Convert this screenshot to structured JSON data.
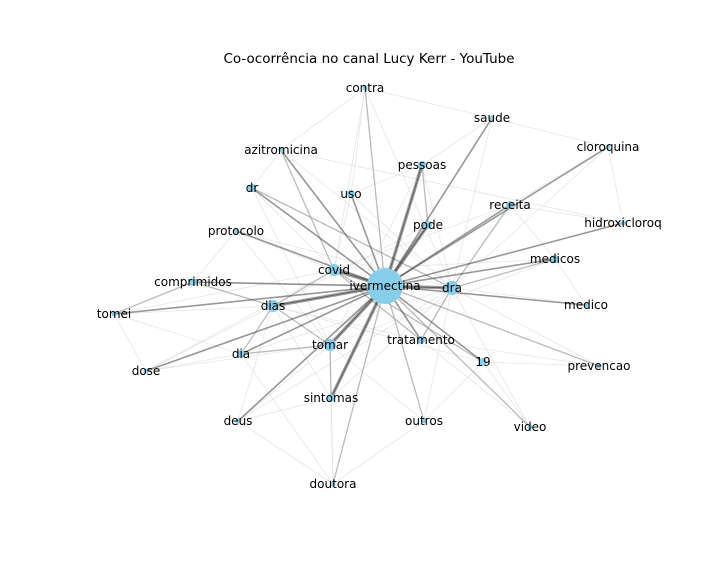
{
  "title": "Co-ocorrência no canal Lucy Kerr - YouTube",
  "colors": {
    "node_fill": "#87ceeb",
    "strong_edge": "#444444",
    "medium_edge": "#9e9e9e",
    "weak_edge": "#dddddd",
    "background": "#ffffff"
  },
  "nodes": [
    {
      "id": "ivermectina",
      "label": "ivermectina",
      "size": "hub"
    },
    {
      "id": "dra",
      "label": "dra",
      "size": "large"
    },
    {
      "id": "covid",
      "label": "covid",
      "size": "medium"
    },
    {
      "id": "dias",
      "label": "dias",
      "size": "medium"
    },
    {
      "id": "tomar",
      "label": "tomar",
      "size": "medium"
    },
    {
      "id": "pode",
      "label": "pode",
      "size": "small"
    },
    {
      "id": "uso",
      "label": "uso",
      "size": "small"
    },
    {
      "id": "pessoas",
      "label": "pessoas",
      "size": "small"
    },
    {
      "id": "receita",
      "label": "receita",
      "size": "small"
    },
    {
      "id": "tratamento",
      "label": "tratamento",
      "size": "small"
    },
    {
      "id": "19",
      "label": "19",
      "size": "small"
    },
    {
      "id": "dia",
      "label": "dia",
      "size": "small"
    },
    {
      "id": "sintomas",
      "label": "sintomas",
      "size": "small"
    },
    {
      "id": "medicos",
      "label": "medicos",
      "size": "small"
    },
    {
      "id": "dr",
      "label": "dr",
      "size": "small"
    },
    {
      "id": "comprimidos",
      "label": "comprimidos",
      "size": "small"
    },
    {
      "id": "azitromicina",
      "label": "azitromicina",
      "size": "tiny"
    },
    {
      "id": "protocolo",
      "label": "protocolo",
      "size": "tiny"
    },
    {
      "id": "contra",
      "label": "contra",
      "size": "tiny"
    },
    {
      "id": "saude",
      "label": "saude",
      "size": "tiny"
    },
    {
      "id": "cloroquina",
      "label": "cloroquina",
      "size": "tiny"
    },
    {
      "id": "hidroxicloroq",
      "label": "hidroxicloroq",
      "size": "tiny"
    },
    {
      "id": "medico",
      "label": "medico",
      "size": "tiny"
    },
    {
      "id": "prevencao",
      "label": "prevencao",
      "size": "tiny"
    },
    {
      "id": "video",
      "label": "video",
      "size": "tiny"
    },
    {
      "id": "outros",
      "label": "outros",
      "size": "tiny"
    },
    {
      "id": "doutora",
      "label": "doutora",
      "size": "tiny"
    },
    {
      "id": "deus",
      "label": "deus",
      "size": "tiny"
    },
    {
      "id": "dose",
      "label": "dose",
      "size": "tiny"
    },
    {
      "id": "tomei",
      "label": "tomei",
      "size": "tiny"
    }
  ],
  "strong_edges": [
    [
      "ivermectina",
      "dra"
    ],
    [
      "ivermectina",
      "covid"
    ],
    [
      "ivermectina",
      "dias"
    ],
    [
      "ivermectina",
      "tomar"
    ],
    [
      "ivermectina",
      "pode"
    ],
    [
      "ivermectina",
      "uso"
    ],
    [
      "ivermectina",
      "pessoas"
    ],
    [
      "ivermectina",
      "receita"
    ],
    [
      "ivermectina",
      "tratamento"
    ],
    [
      "ivermectina",
      "19"
    ],
    [
      "ivermectina",
      "dia"
    ],
    [
      "ivermectina",
      "sintomas"
    ],
    [
      "ivermectina",
      "medicos"
    ],
    [
      "ivermectina",
      "dr"
    ],
    [
      "ivermectina",
      "comprimidos"
    ],
    [
      "ivermectina",
      "azitromicina"
    ],
    [
      "ivermectina",
      "protocolo"
    ],
    [
      "ivermectina",
      "tomei"
    ],
    [
      "ivermectina",
      "deus"
    ],
    [
      "ivermectina",
      "dose"
    ],
    [
      "ivermectina",
      "cloroquina"
    ],
    [
      "ivermectina",
      "hidroxicloroq"
    ],
    [
      "ivermectina",
      "medico"
    ],
    [
      "ivermectina",
      "saude"
    ]
  ],
  "medium_edges": [
    [
      "ivermectina",
      "contra"
    ],
    [
      "ivermectina",
      "prevencao"
    ],
    [
      "ivermectina",
      "video"
    ],
    [
      "ivermectina",
      "outros"
    ],
    [
      "ivermectina",
      "doutora"
    ],
    [
      "covid",
      "19"
    ],
    [
      "dra",
      "receita"
    ],
    [
      "dra",
      "medicos"
    ],
    [
      "covid",
      "tratamento"
    ],
    [
      "dias",
      "comprimidos"
    ],
    [
      "tomar",
      "dias"
    ],
    [
      "tomar",
      "dia"
    ],
    [
      "dr",
      "dra"
    ],
    [
      "azitromicina",
      "covid"
    ],
    [
      "pessoas",
      "pode"
    ],
    [
      "tomar",
      "sintomas"
    ],
    [
      "comprimidos",
      "tomei"
    ],
    [
      "dias",
      "dia"
    ],
    [
      "covid",
      "dias"
    ],
    [
      "dra",
      "tratamento"
    ]
  ],
  "weak_edges": [
    [
      "contra",
      "covid"
    ],
    [
      "contra",
      "dra"
    ],
    [
      "contra",
      "uso"
    ],
    [
      "saude",
      "pessoas"
    ],
    [
      "saude",
      "dra"
    ],
    [
      "cloroquina",
      "dra"
    ],
    [
      "cloroquina",
      "hidroxicloroq"
    ],
    [
      "hidroxicloroq",
      "azitromicina"
    ],
    [
      "medico",
      "dra"
    ],
    [
      "prevencao",
      "dra"
    ],
    [
      "prevencao",
      "19"
    ],
    [
      "video",
      "dra"
    ],
    [
      "video",
      "19"
    ],
    [
      "outros",
      "tomar"
    ],
    [
      "outros",
      "dra"
    ],
    [
      "doutora",
      "tomar"
    ],
    [
      "doutora",
      "dia"
    ],
    [
      "doutora",
      "sintomas"
    ],
    [
      "deus",
      "dra"
    ],
    [
      "deus",
      "dias"
    ],
    [
      "deus",
      "tomar"
    ],
    [
      "dose",
      "dias"
    ],
    [
      "dose",
      "covid"
    ],
    [
      "dose",
      "tomar"
    ],
    [
      "tomei",
      "dias"
    ],
    [
      "tomei",
      "covid"
    ],
    [
      "tomei",
      "dia"
    ],
    [
      "protocolo",
      "covid"
    ],
    [
      "protocolo",
      "dra"
    ],
    [
      "protocolo",
      "tomar"
    ],
    [
      "azitromicina",
      "dra"
    ],
    [
      "dr",
      "covid"
    ],
    [
      "dr",
      "tomar"
    ],
    [
      "uso",
      "dra"
    ],
    [
      "uso",
      "covid"
    ],
    [
      "pessoas",
      "dra"
    ],
    [
      "pessoas",
      "tomar"
    ],
    [
      "receita",
      "covid"
    ],
    [
      "medicos",
      "covid"
    ],
    [
      "medicos",
      "tomar"
    ],
    [
      "tratamento",
      "dias"
    ],
    [
      "19",
      "dias"
    ],
    [
      "sintomas",
      "dra"
    ],
    [
      "sintomas",
      "dias"
    ],
    [
      "dia",
      "dra"
    ],
    [
      "comprimidos",
      "dra"
    ],
    [
      "pode",
      "dias"
    ],
    [
      "pode",
      "tomar"
    ],
    [
      "contra",
      "saude"
    ],
    [
      "cloroquina",
      "receita"
    ],
    [
      "hidroxicloroq",
      "receita"
    ],
    [
      "medico",
      "medicos"
    ],
    [
      "prevencao",
      "tratamento"
    ],
    [
      "outros",
      "19"
    ],
    [
      "deus",
      "sintomas"
    ],
    [
      "dose",
      "dia"
    ],
    [
      "tomei",
      "dose"
    ],
    [
      "comprimidos",
      "protocolo"
    ],
    [
      "dr",
      "azitromicina"
    ],
    [
      "uso",
      "pessoas"
    ],
    [
      "medicos",
      "receita"
    ],
    [
      "video",
      "tratamento"
    ],
    [
      "doutora",
      "outros"
    ],
    [
      "deus",
      "doutora"
    ],
    [
      "saude",
      "cloroquina"
    ],
    [
      "contra",
      "azitromicina"
    ]
  ]
}
